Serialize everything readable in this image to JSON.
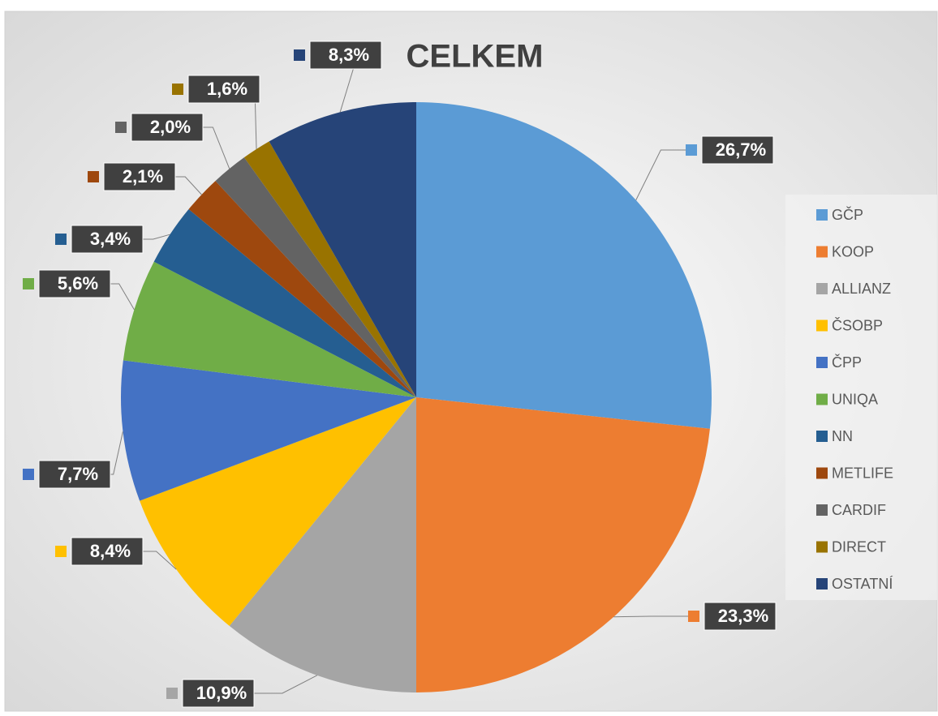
{
  "chart_data": {
    "type": "pie",
    "title": "CELKEM",
    "categories": [
      "GČP",
      "KOOP",
      "ALLIANZ",
      "ČSOBP",
      "ČPP",
      "UNIQA",
      "NN",
      "METLIFE",
      "CARDIF",
      "DIRECT",
      "OSTATNÍ"
    ],
    "values": [
      26.7,
      23.3,
      10.9,
      8.4,
      7.7,
      5.6,
      3.4,
      2.1,
      2.0,
      1.6,
      8.3
    ],
    "value_labels": [
      "26,7%",
      "23,3%",
      "10,9%",
      "8,4%",
      "7,7%",
      "5,6%",
      "3,4%",
      "2,1%",
      "2,0%",
      "1,6%",
      "8,3%"
    ],
    "colors": [
      "#5b9bd5",
      "#ed7d31",
      "#a5a5a5",
      "#ffc000",
      "#4472c4",
      "#70ad47",
      "#255e91",
      "#9e480e",
      "#636363",
      "#997300",
      "#264478"
    ],
    "legend": "right"
  }
}
